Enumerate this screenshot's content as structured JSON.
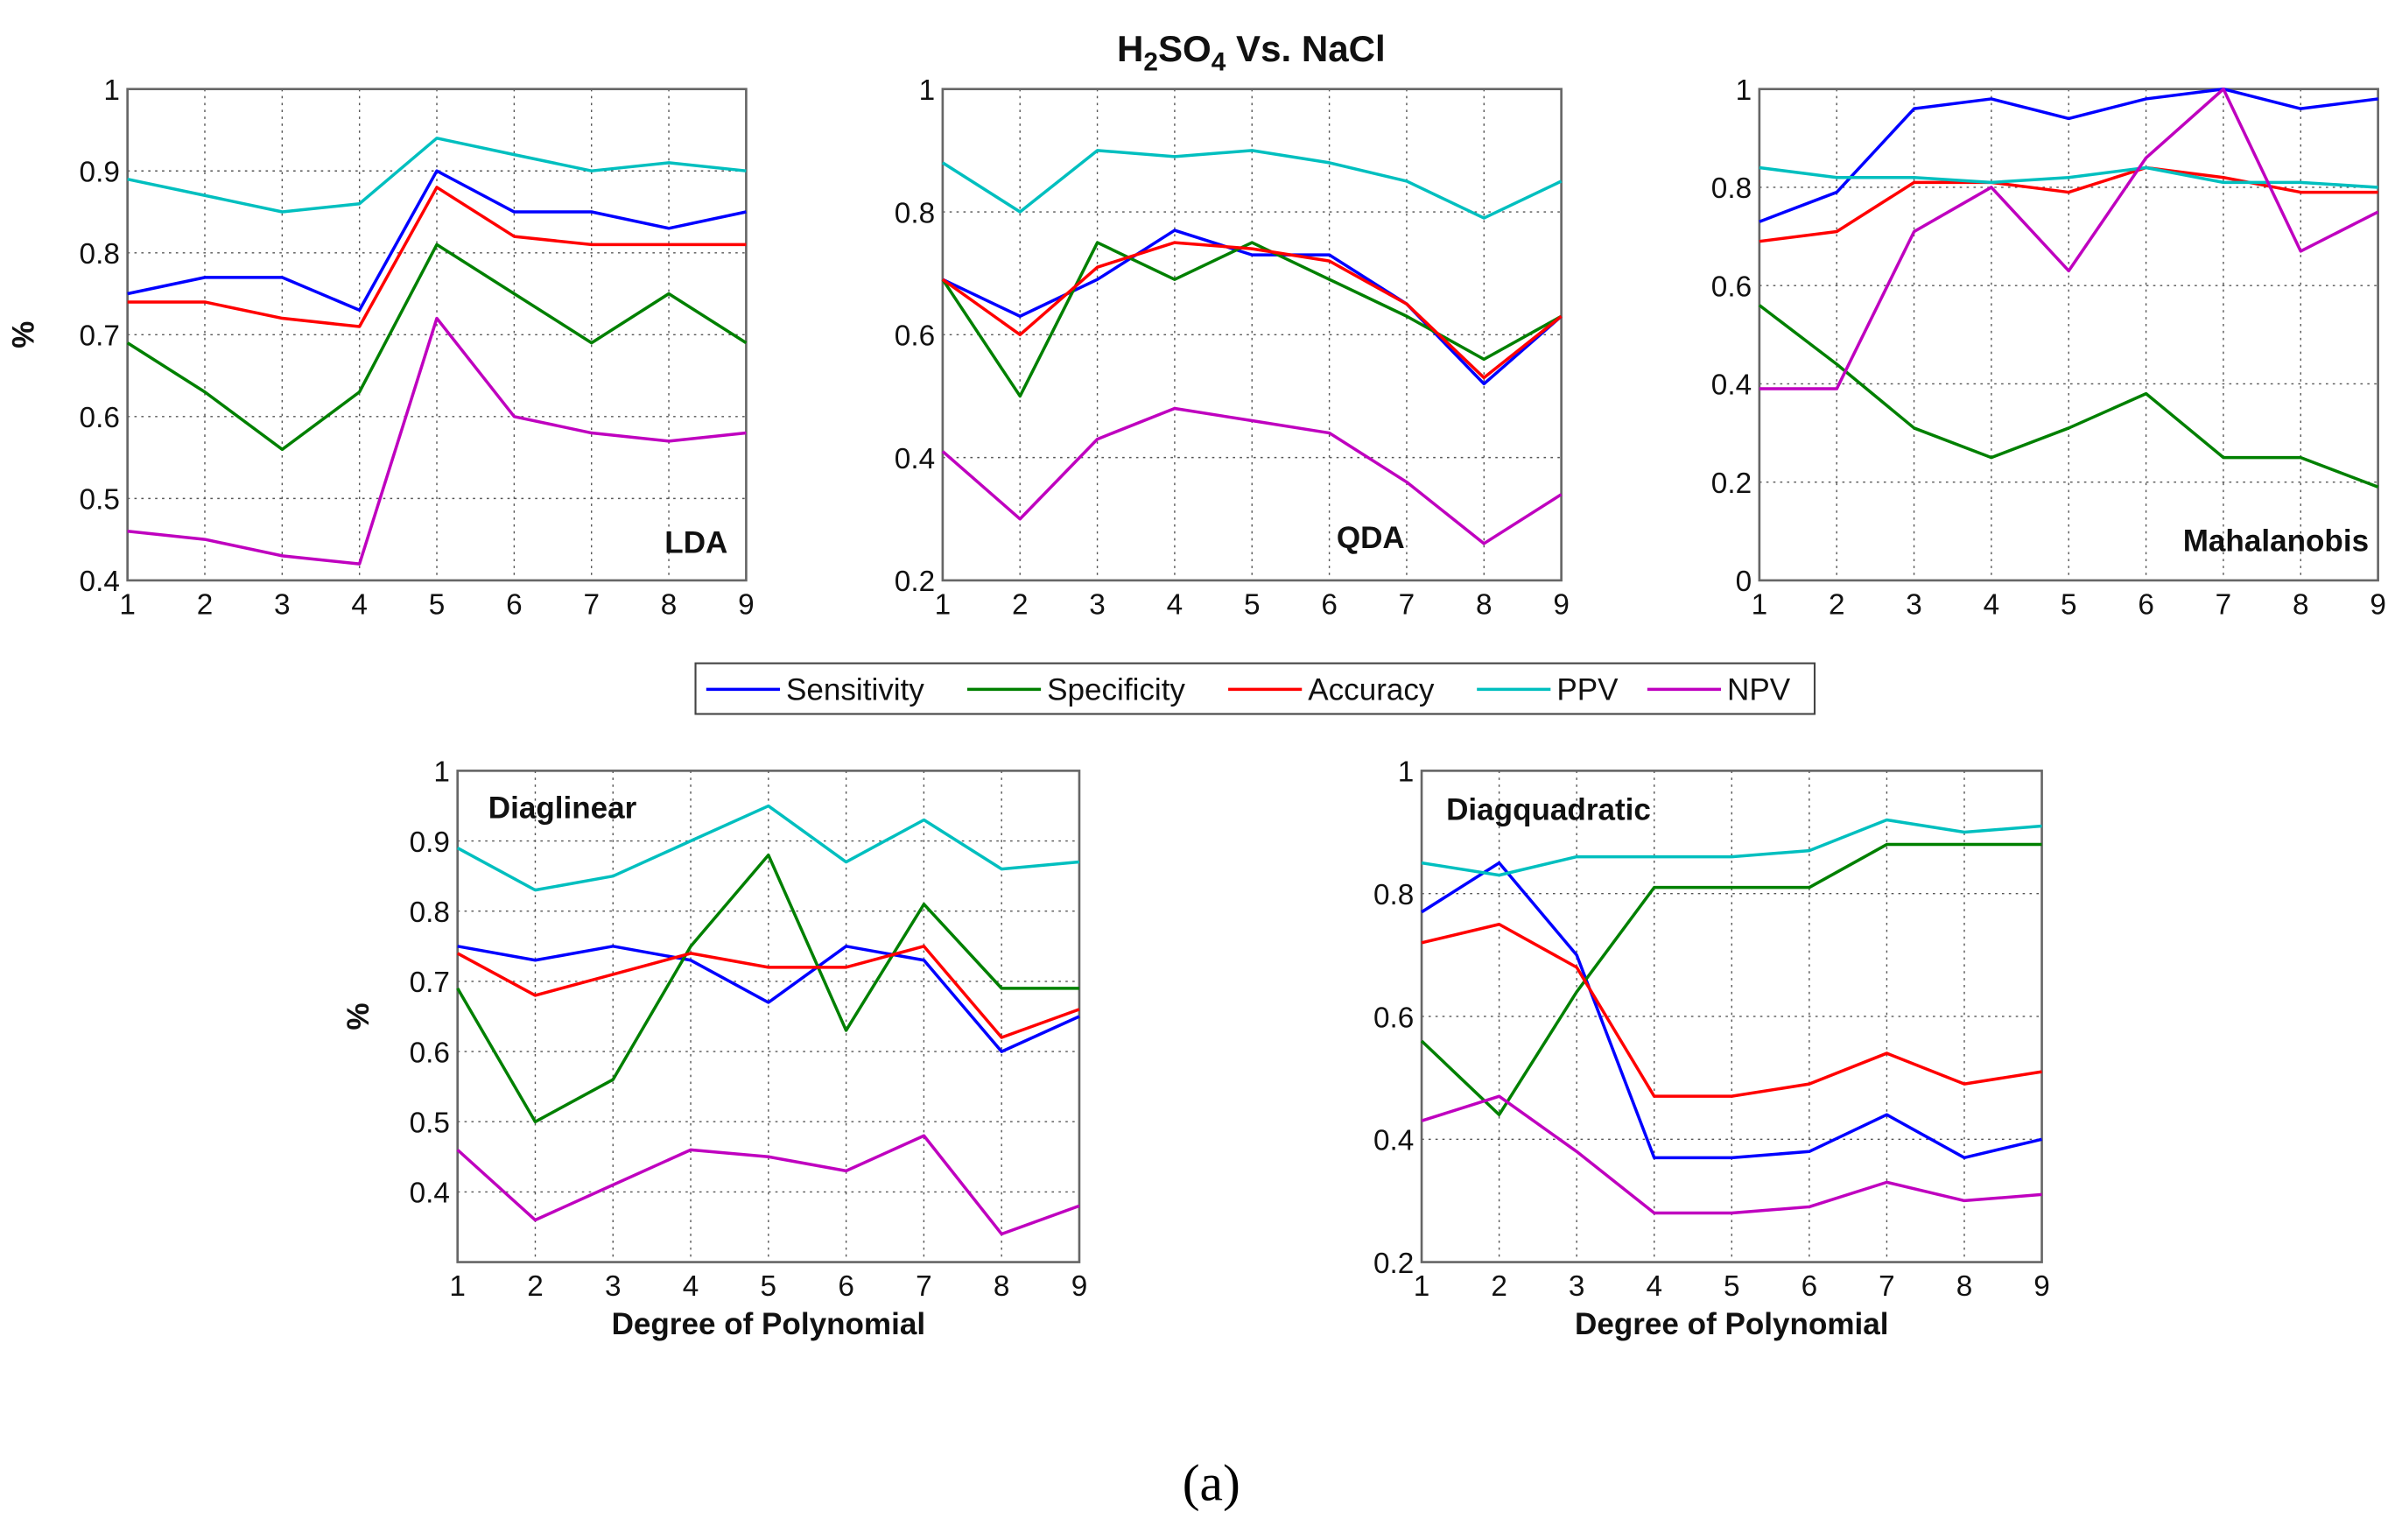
{
  "title_main": "H",
  "title_sub1": "2",
  "title_mid": "SO",
  "title_sub2": "4",
  "title_end": " Vs. NaCl",
  "caption": "(a)",
  "colors": {
    "Sensitivity": "#0000ff",
    "Specificity": "#008000",
    "Accuracy": "#ff0000",
    "PPV": "#00bfbf",
    "NPV": "#bf00bf"
  },
  "legend": [
    "Sensitivity",
    "Specificity",
    "Accuracy",
    "PPV",
    "NPV"
  ],
  "chart_data": [
    {
      "type": "line",
      "label": "LDA",
      "x": [
        1,
        2,
        3,
        4,
        5,
        6,
        7,
        8,
        9
      ],
      "ylim": [
        0.4,
        1
      ],
      "yticks": [
        "0.4",
        "0.5",
        "0.6",
        "0.7",
        "0.8",
        "0.9",
        "1"
      ],
      "ylabel": "%",
      "xlabel": "",
      "grid": true,
      "series": [
        {
          "name": "Sensitivity",
          "values": [
            0.75,
            0.77,
            0.77,
            0.73,
            0.9,
            0.85,
            0.85,
            0.83,
            0.85
          ]
        },
        {
          "name": "Specificity",
          "values": [
            0.69,
            0.63,
            0.56,
            0.63,
            0.81,
            0.75,
            0.69,
            0.75,
            0.69
          ]
        },
        {
          "name": "Accuracy",
          "values": [
            0.74,
            0.74,
            0.72,
            0.71,
            0.88,
            0.82,
            0.81,
            0.81,
            0.81
          ]
        },
        {
          "name": "PPV",
          "values": [
            0.89,
            0.87,
            0.85,
            0.86,
            0.94,
            0.92,
            0.9,
            0.91,
            0.9
          ]
        },
        {
          "name": "NPV",
          "values": [
            0.46,
            0.45,
            0.43,
            0.42,
            0.72,
            0.6,
            0.58,
            0.57,
            0.58
          ]
        }
      ]
    },
    {
      "type": "line",
      "label": "QDA",
      "x": [
        1,
        2,
        3,
        4,
        5,
        6,
        7,
        8,
        9
      ],
      "ylim": [
        0.2,
        1
      ],
      "yticks": [
        "0.2",
        "0.4",
        "0.6",
        "0.8",
        "1"
      ],
      "ylabel": "",
      "xlabel": "",
      "grid": true,
      "series": [
        {
          "name": "Sensitivity",
          "values": [
            0.69,
            0.63,
            0.69,
            0.77,
            0.73,
            0.73,
            0.65,
            0.52,
            0.63
          ]
        },
        {
          "name": "Specificity",
          "values": [
            0.69,
            0.5,
            0.75,
            0.69,
            0.75,
            0.69,
            0.63,
            0.56,
            0.63
          ]
        },
        {
          "name": "Accuracy",
          "values": [
            0.69,
            0.6,
            0.71,
            0.75,
            0.74,
            0.72,
            0.65,
            0.53,
            0.63
          ]
        },
        {
          "name": "PPV",
          "values": [
            0.88,
            0.8,
            0.9,
            0.89,
            0.9,
            0.88,
            0.85,
            0.79,
            0.85
          ]
        },
        {
          "name": "NPV",
          "values": [
            0.41,
            0.3,
            0.43,
            0.48,
            0.46,
            0.44,
            0.36,
            0.26,
            0.34
          ]
        }
      ]
    },
    {
      "type": "line",
      "label": "Mahalanobis",
      "x": [
        1,
        2,
        3,
        4,
        5,
        6,
        7,
        8,
        9
      ],
      "ylim": [
        0,
        1
      ],
      "yticks": [
        "0",
        "0.2",
        "0.4",
        "0.6",
        "0.8",
        "1"
      ],
      "ylabel": "",
      "xlabel": "",
      "grid": true,
      "series": [
        {
          "name": "Sensitivity",
          "values": [
            0.73,
            0.79,
            0.96,
            0.98,
            0.94,
            0.98,
            1.0,
            0.96,
            0.98
          ]
        },
        {
          "name": "Specificity",
          "values": [
            0.56,
            0.44,
            0.31,
            0.25,
            0.31,
            0.38,
            0.25,
            0.25,
            0.19
          ]
        },
        {
          "name": "Accuracy",
          "values": [
            0.69,
            0.71,
            0.81,
            0.81,
            0.79,
            0.84,
            0.82,
            0.79,
            0.79
          ]
        },
        {
          "name": "PPV",
          "values": [
            0.84,
            0.82,
            0.82,
            0.81,
            0.82,
            0.84,
            0.81,
            0.81,
            0.8
          ]
        },
        {
          "name": "NPV",
          "values": [
            0.39,
            0.39,
            0.71,
            0.8,
            0.63,
            0.86,
            1.0,
            0.67,
            0.75
          ]
        }
      ]
    },
    {
      "type": "line",
      "label": "Diaglinear",
      "x": [
        1,
        2,
        3,
        4,
        5,
        6,
        7,
        8,
        9
      ],
      "ylim": [
        0.3,
        1
      ],
      "yticks": [
        "0.4",
        "0.5",
        "0.6",
        "0.7",
        "0.8",
        "0.9",
        "1"
      ],
      "ylabel": "%",
      "xlabel": "Degree of Polynomial",
      "grid": true,
      "series": [
        {
          "name": "Sensitivity",
          "values": [
            0.75,
            0.73,
            0.75,
            0.73,
            0.67,
            0.75,
            0.73,
            0.6,
            0.65
          ]
        },
        {
          "name": "Specificity",
          "values": [
            0.69,
            0.5,
            0.56,
            0.75,
            0.88,
            0.63,
            0.81,
            0.69,
            0.69
          ]
        },
        {
          "name": "Accuracy",
          "values": [
            0.74,
            0.68,
            0.71,
            0.74,
            0.72,
            0.72,
            0.75,
            0.62,
            0.66
          ]
        },
        {
          "name": "PPV",
          "values": [
            0.89,
            0.83,
            0.85,
            0.9,
            0.95,
            0.87,
            0.93,
            0.86,
            0.87
          ]
        },
        {
          "name": "NPV",
          "values": [
            0.46,
            0.36,
            0.41,
            0.46,
            0.45,
            0.43,
            0.48,
            0.34,
            0.38
          ]
        }
      ]
    },
    {
      "type": "line",
      "label": "Diagquadratic",
      "x": [
        1,
        2,
        3,
        4,
        5,
        6,
        7,
        8,
        9
      ],
      "ylim": [
        0.2,
        1
      ],
      "yticks": [
        "0.2",
        "0.4",
        "0.6",
        "0.8",
        "1"
      ],
      "ylabel": "",
      "xlabel": "Degree of Polynomial",
      "grid": true,
      "series": [
        {
          "name": "Sensitivity",
          "values": [
            0.77,
            0.85,
            0.7,
            0.37,
            0.37,
            0.38,
            0.44,
            0.37,
            0.4
          ]
        },
        {
          "name": "Specificity",
          "values": [
            0.56,
            0.44,
            0.64,
            0.81,
            0.81,
            0.81,
            0.88,
            0.88,
            0.88
          ]
        },
        {
          "name": "Accuracy",
          "values": [
            0.72,
            0.75,
            0.68,
            0.47,
            0.47,
            0.49,
            0.54,
            0.49,
            0.51
          ]
        },
        {
          "name": "PPV",
          "values": [
            0.85,
            0.83,
            0.86,
            0.86,
            0.86,
            0.87,
            0.92,
            0.9,
            0.91
          ]
        },
        {
          "name": "NPV",
          "values": [
            0.43,
            0.47,
            0.38,
            0.28,
            0.28,
            0.29,
            0.33,
            0.3,
            0.31
          ]
        }
      ]
    }
  ]
}
